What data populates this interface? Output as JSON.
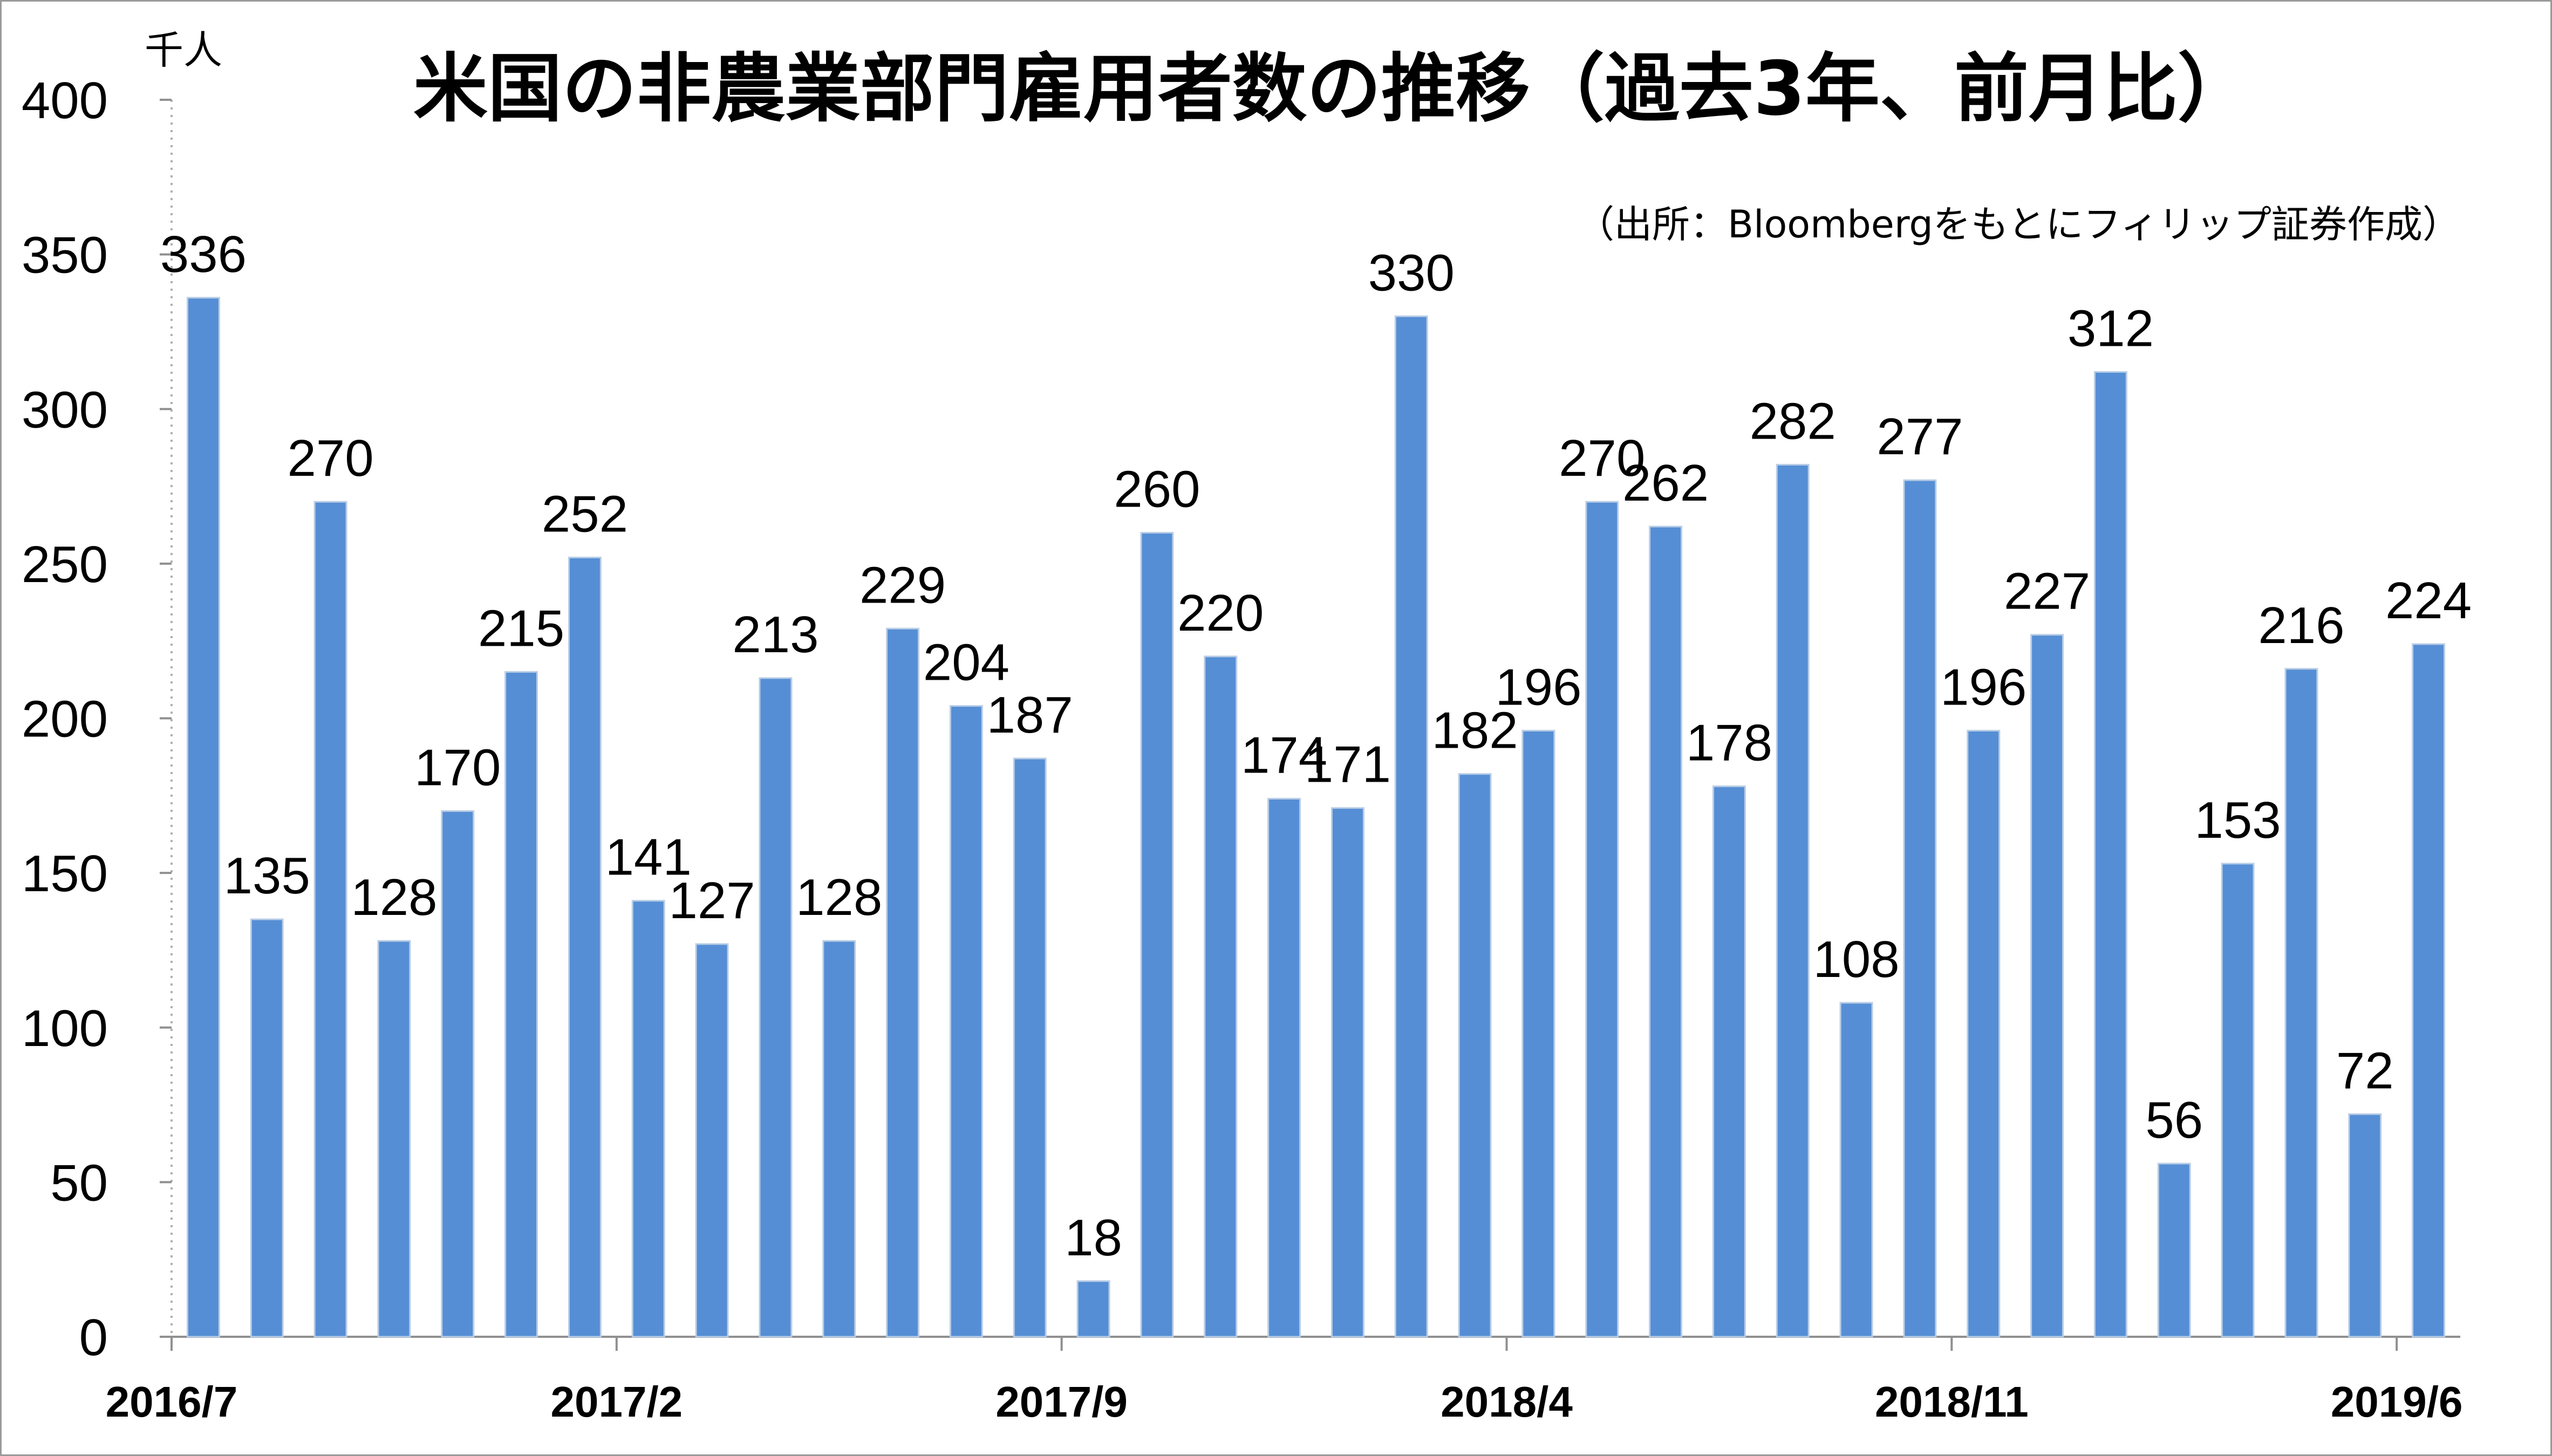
{
  "chart_data": {
    "type": "bar",
    "title": "米国の非農業部門雇用者数の推移（過去3年、前月比）",
    "source_note": "（出所：Bloombergをもとにフィリップ証券作成）",
    "ylabel": "千人",
    "xlabel": "",
    "ylim": [
      0,
      400
    ],
    "yticks": [
      "0",
      "50",
      "100",
      "150",
      "200",
      "250",
      "300",
      "350",
      "400"
    ],
    "xtick_labels": [
      "2016/7",
      "2017/2",
      "2017/9",
      "2018/4",
      "2018/11",
      "2019/6"
    ],
    "xtick_positions": [
      0,
      7,
      14,
      21,
      28,
      35
    ],
    "categories": [
      "2016/7",
      "2016/8",
      "2016/9",
      "2016/10",
      "2016/11",
      "2016/12",
      "2017/1",
      "2017/2",
      "2017/3",
      "2017/4",
      "2017/5",
      "2017/6",
      "2017/7",
      "2017/8",
      "2017/9",
      "2017/10",
      "2017/11",
      "2017/12",
      "2018/1",
      "2018/2",
      "2018/3",
      "2018/4",
      "2018/5",
      "2018/6",
      "2018/7",
      "2018/8",
      "2018/9",
      "2018/10",
      "2018/11",
      "2018/12",
      "2019/1",
      "2019/2",
      "2019/3",
      "2019/4",
      "2019/5",
      "2019/6"
    ],
    "values": [
      336,
      135,
      270,
      128,
      170,
      215,
      252,
      141,
      127,
      213,
      128,
      229,
      204,
      187,
      18,
      260,
      220,
      174,
      171,
      330,
      182,
      196,
      270,
      262,
      178,
      282,
      108,
      277,
      196,
      227,
      312,
      56,
      153,
      216,
      72,
      224
    ],
    "bar_color": "#558ed5",
    "bar_edge_color": "#b9cde5",
    "grid": false,
    "legend": "none"
  }
}
